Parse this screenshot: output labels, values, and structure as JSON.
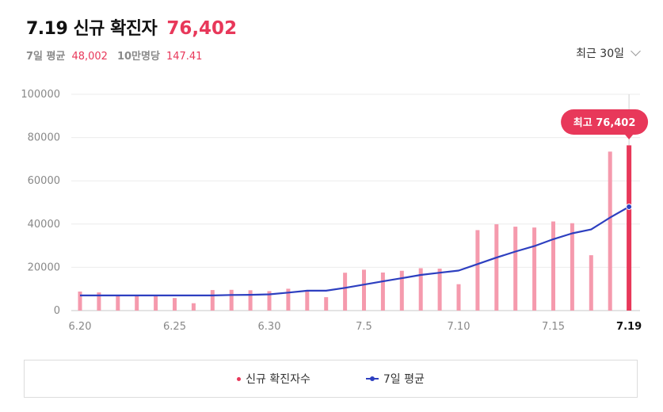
{
  "header": {
    "title": "7.19 신규 확진자",
    "title_value": "76,402",
    "avg_label": "7일 평균",
    "avg_value": "48,002",
    "per_label": "10만명당",
    "per_value": "147.41"
  },
  "period_selector": {
    "label": "최근 30일"
  },
  "legend": {
    "bars_label": "신규 확진자수",
    "line_label": "7일 평균"
  },
  "tooltip": {
    "label": "최고 76,402"
  },
  "colors": {
    "bar": "#f59aad",
    "bar_highlight": "#e8385a",
    "line": "#2d3fc0",
    "accent": "#e8385a"
  },
  "chart_data": {
    "type": "bar",
    "ylim": [
      0,
      100000
    ],
    "y_ticks": [
      0,
      20000,
      40000,
      60000,
      80000,
      100000
    ],
    "x_tick_labels": [
      {
        "index": 0,
        "label": "6.20"
      },
      {
        "index": 5,
        "label": "6.25"
      },
      {
        "index": 10,
        "label": "6.30"
      },
      {
        "index": 15,
        "label": "7.5"
      },
      {
        "index": 20,
        "label": "7.10"
      },
      {
        "index": 25,
        "label": "7.15"
      },
      {
        "index": 29,
        "label": "7.19"
      }
    ],
    "categories": [
      "6.20",
      "6.21",
      "6.22",
      "6.23",
      "6.24",
      "6.25",
      "6.26",
      "6.27",
      "6.28",
      "6.29",
      "6.30",
      "7.1",
      "7.2",
      "7.3",
      "7.4",
      "7.5",
      "7.6",
      "7.7",
      "7.8",
      "7.9",
      "7.10",
      "7.11",
      "7.12",
      "7.13",
      "7.14",
      "7.15",
      "7.16",
      "7.17",
      "7.18",
      "7.19"
    ],
    "series": [
      {
        "name": "신규 확진자수",
        "type": "bar",
        "values": [
          8800,
          8400,
          7000,
          6700,
          6800,
          5800,
          3400,
          9500,
          9600,
          9400,
          9000,
          10100,
          9500,
          6200,
          17500,
          18900,
          17600,
          18400,
          19600,
          19400,
          12200,
          37200,
          39900,
          38800,
          38400,
          41200,
          40400,
          25600,
          73500,
          76402
        ]
      },
      {
        "name": "7일 평균",
        "type": "line",
        "values": [
          7000,
          7000,
          7000,
          7000,
          7000,
          7000,
          7000,
          7000,
          7200,
          7300,
          7500,
          8300,
          9200,
          9200,
          10500,
          12000,
          13500,
          15000,
          16500,
          17500,
          18500,
          21500,
          24500,
          27300,
          29800,
          33000,
          35700,
          37500,
          43000,
          48002
        ]
      }
    ]
  }
}
